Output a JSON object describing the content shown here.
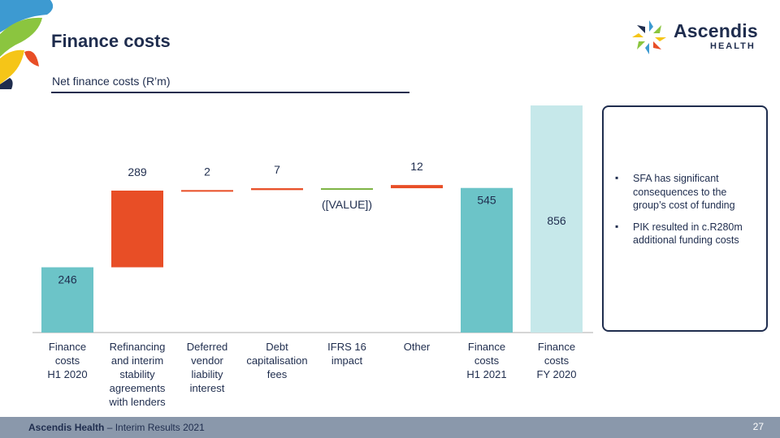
{
  "header": {
    "title": "Finance costs",
    "brand_name": "Ascendis",
    "brand_sub": "HEALTH"
  },
  "subtitle": "Net finance costs (R’m)",
  "chart_data": {
    "type": "waterfall",
    "title": "Net finance costs (R’m)",
    "categories": [
      "Finance costs H1 2020",
      "Refinancing and interim stability agreements with lenders",
      "Deferred vendor liability interest",
      "Debt capitalisation fees",
      "IFRS 16 impact",
      "Other",
      "Finance costs H1 2021",
      "Finance costs FY 2020"
    ],
    "label_lines": [
      [
        "Finance",
        "costs",
        "H1 2020"
      ],
      [
        "Refinancing",
        "and interim",
        "stability",
        "agreements",
        "with lenders"
      ],
      [
        "Deferred",
        "vendor",
        "liability",
        "interest"
      ],
      [
        "Debt",
        "capitalisation",
        "fees"
      ],
      [
        "IFRS 16",
        "impact"
      ],
      [
        "Other"
      ],
      [
        "Finance",
        "costs",
        "H1 2021"
      ],
      [
        "Finance",
        "costs",
        "FY 2020"
      ]
    ],
    "values": [
      246,
      289,
      2,
      7,
      null,
      12,
      545,
      856
    ],
    "value_labels": [
      "246",
      "289",
      "2",
      "7",
      "([VALUE])",
      "12",
      "545",
      "856"
    ],
    "kinds": [
      "total",
      "increase",
      "increase",
      "increase",
      "decrease",
      "increase",
      "total",
      "total"
    ],
    "ylim": [
      0,
      900
    ],
    "colors": {
      "start_total": "#6cc4c8",
      "increase": "#e84e26",
      "decrease": "#7cb342",
      "end_total": "#6cc4c8",
      "fy_total": "#c6e8ea",
      "axis": "#c8c8c8"
    }
  },
  "notes": [
    "SFA has significant consequences to the group’s cost of funding",
    "PIK resulted in c.R280m additional funding costs"
  ],
  "footer": {
    "company": "Ascendis Health",
    "separator": " – ",
    "event": "Interim Results 2021",
    "page": "27"
  }
}
